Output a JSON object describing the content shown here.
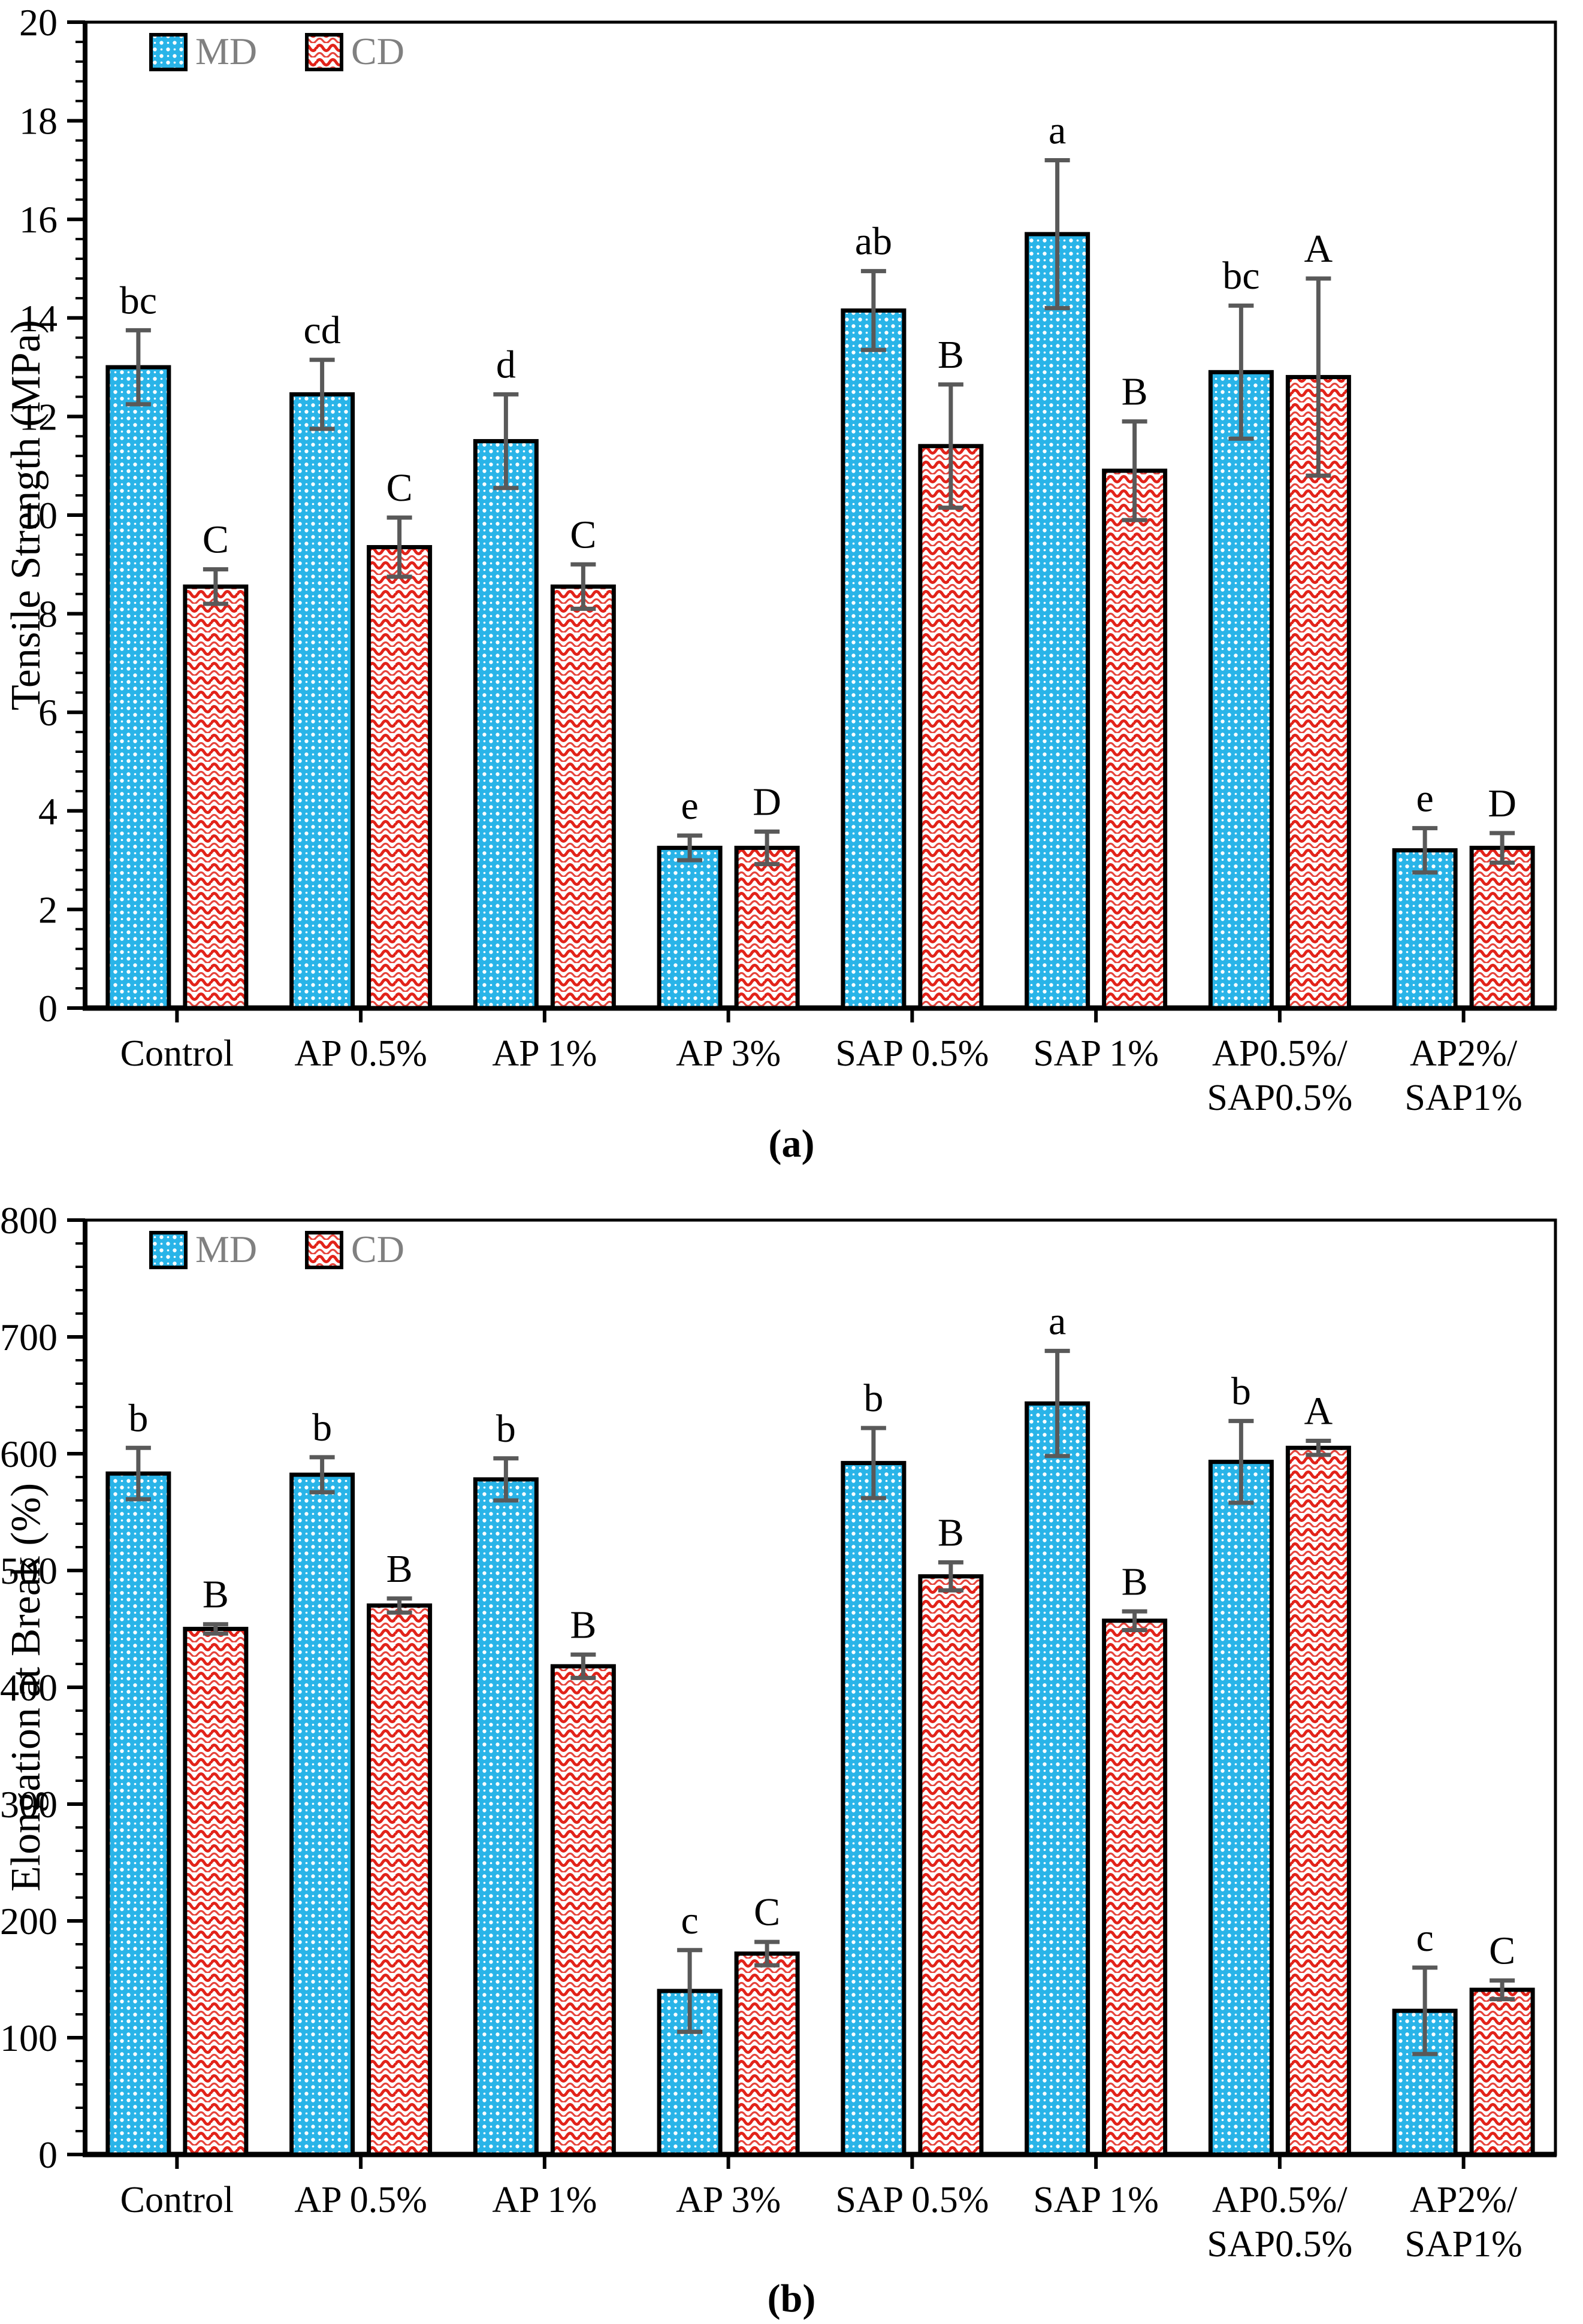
{
  "figure": {
    "background": "#ffffff",
    "description_visible_text_only": true
  },
  "colors": {
    "md_fill": "#29b4e8",
    "md_dot": "#ffffff",
    "cd_wave": "#e2231a",
    "cd_bg": "#ffffff",
    "bar_border": "#000000",
    "error_bar": "#595959",
    "legend_text": "#808080",
    "axis": "#000000",
    "text": "#000000"
  },
  "chart_data": [
    {
      "type": "bar",
      "panel": "a",
      "caption": "(a)",
      "title": "",
      "xlabel": "",
      "ylabel": "Tensile Strength (MPa)",
      "ylim": [
        0,
        20
      ],
      "y_major_step": 2,
      "y_minor_step": 0.4,
      "y_tick_labels": [
        "0",
        "2",
        "4",
        "6",
        "8",
        "10",
        "12",
        "14",
        "16",
        "18",
        "20"
      ],
      "grid": false,
      "legend": [
        "MD",
        "CD"
      ],
      "legend_position": "top-left-inside",
      "categories": [
        "Control",
        "AP 0.5%",
        "AP 1%",
        "AP 3%",
        "SAP 0.5%",
        "SAP 1%",
        "AP0.5%/SAP0.5%",
        "AP2%/SAP1%"
      ],
      "category_label_lines": [
        [
          "Control"
        ],
        [
          "AP 0.5%"
        ],
        [
          "AP 1%"
        ],
        [
          "AP 3%"
        ],
        [
          "SAP 0.5%"
        ],
        [
          "SAP 1%"
        ],
        [
          "AP0.5%/",
          "SAP0.5%"
        ],
        [
          "AP2%/",
          "SAP1%"
        ]
      ],
      "series": [
        {
          "name": "MD",
          "values": [
            13.0,
            12.45,
            11.5,
            3.25,
            14.15,
            15.7,
            12.9,
            3.2
          ],
          "errors": [
            0.75,
            0.7,
            0.95,
            0.25,
            0.8,
            1.5,
            1.35,
            0.45
          ],
          "letters": [
            "bc",
            "cd",
            "d",
            "e",
            "ab",
            "a",
            "bc",
            "e"
          ]
        },
        {
          "name": "CD",
          "values": [
            8.55,
            9.35,
            8.55,
            3.25,
            11.4,
            10.9,
            12.8,
            3.25
          ],
          "errors": [
            0.35,
            0.6,
            0.45,
            0.33,
            1.25,
            1.0,
            2.0,
            0.3
          ],
          "letters": [
            "C",
            "C",
            "C",
            "D",
            "B",
            "B",
            "A",
            "D"
          ]
        }
      ]
    },
    {
      "type": "bar",
      "panel": "b",
      "caption": "(b)",
      "title": "",
      "xlabel": "",
      "ylabel": "Elongation at Break (%)",
      "ylim": [
        0,
        800
      ],
      "y_major_step": 100,
      "y_minor_step": 20,
      "y_tick_labels": [
        "0",
        "100",
        "200",
        "300",
        "400",
        "500",
        "600",
        "700",
        "800"
      ],
      "grid": false,
      "legend": [
        "MD",
        "CD"
      ],
      "legend_position": "top-left-inside",
      "categories": [
        "Control",
        "AP 0.5%",
        "AP 1%",
        "AP 3%",
        "SAP 0.5%",
        "SAP 1%",
        "AP0.5%/SAP0.5%",
        "AP2%/SAP1%"
      ],
      "category_label_lines": [
        [
          "Control"
        ],
        [
          "AP 0.5%"
        ],
        [
          "AP 1%"
        ],
        [
          "AP 3%"
        ],
        [
          "SAP 0.5%"
        ],
        [
          "SAP 1%"
        ],
        [
          "AP0.5%/",
          "SAP0.5%"
        ],
        [
          "AP2%/",
          "SAP1%"
        ]
      ],
      "series": [
        {
          "name": "MD",
          "values": [
            583,
            582,
            578,
            140,
            592,
            643,
            593,
            123
          ],
          "errors": [
            22,
            15,
            18,
            35,
            30,
            45,
            35,
            37
          ],
          "letters": [
            "b",
            "b",
            "b",
            "c",
            "b",
            "a",
            "b",
            "c"
          ]
        },
        {
          "name": "CD",
          "values": [
            450,
            470,
            418,
            172,
            495,
            457,
            605,
            141
          ],
          "errors": [
            4,
            6,
            10,
            10,
            12,
            8,
            6,
            8
          ],
          "letters": [
            "B",
            "B",
            "B",
            "C",
            "B",
            "B",
            "A",
            "C"
          ]
        }
      ]
    }
  ]
}
